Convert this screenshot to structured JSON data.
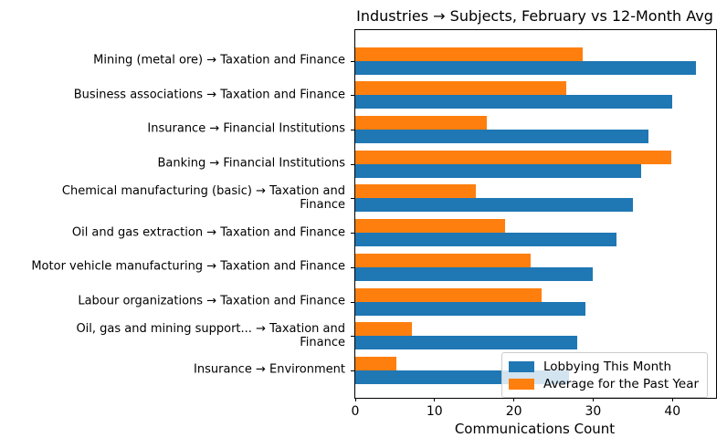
{
  "chart_data": {
    "type": "bar",
    "orientation": "horizontal",
    "title": "Industries → Subjects, February vs 12-Month Avg",
    "xlabel": "Communications Count",
    "ylabel": "",
    "categories": [
      "Mining (metal ore) → Taxation and Finance",
      "Business associations → Taxation and Finance",
      "Insurance → Financial Institutions",
      "Banking → Financial Institutions",
      "Chemical manufacturing (basic) → Taxation and\nFinance",
      "Oil and gas extraction → Taxation and Finance",
      "Motor vehicle manufacturing → Taxation and Finance",
      "Labour organizations → Taxation and Finance",
      "Oil, gas and mining support... → Taxation and\nFinance",
      "Insurance → Environment"
    ],
    "series": [
      {
        "name": "Lobbying This Month",
        "color": "#1f77b4",
        "values": [
          43,
          40,
          37,
          36,
          35,
          33,
          30,
          29,
          28,
          27
        ]
      },
      {
        "name": "Average for the Past Year",
        "color": "#ff7f0e",
        "values": [
          28.7,
          26.6,
          16.6,
          39.8,
          15.2,
          18.9,
          22.1,
          23.5,
          7.1,
          5.2
        ]
      }
    ],
    "xlim": [
      0,
      45.5
    ],
    "x_ticks": [
      0,
      10,
      20,
      30,
      40
    ],
    "grid": false,
    "legend_position": "lower right"
  },
  "colors": {
    "this_month": "#1f77b4",
    "past_year_avg": "#ff7f0e",
    "axis": "#000000",
    "legend_border": "#cccccc"
  }
}
